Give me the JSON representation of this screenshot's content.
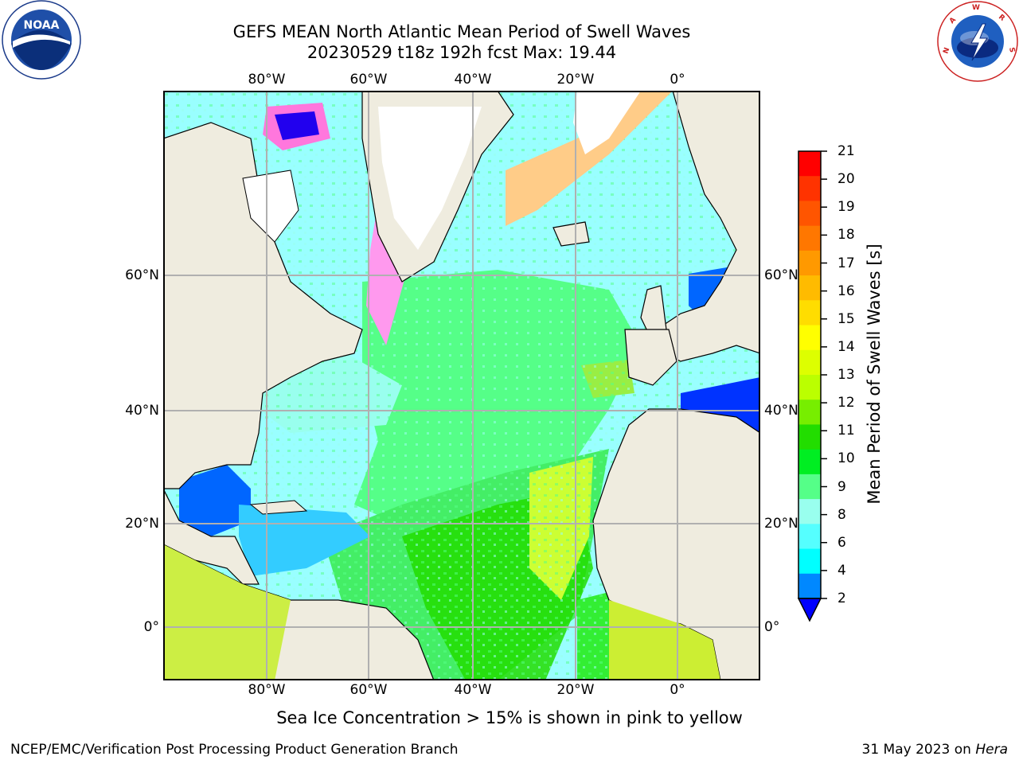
{
  "header": {
    "title_line1": "GEFS MEAN North Atlantic Mean Period of Swell Waves",
    "title_line2": "20230529 t18z 192h fcst   Max: 19.44"
  },
  "logos": {
    "noaa": {
      "name": "noaa-logo",
      "text": "NOAA",
      "ring_text": "NATIONAL OCEANIC AND ATMOSPHERIC ADMINISTRATION · U.S. DEPARTMENT OF COMMERCE"
    },
    "nws": {
      "name": "nws-logo",
      "ring_text": "NATIONAL WEATHER SERVICE"
    }
  },
  "map": {
    "region": "North Atlantic",
    "lon_ticks": [
      "80°W",
      "60°W",
      "40°W",
      "20°W",
      "0°"
    ],
    "lat_ticks": [
      "60°N",
      "40°N",
      "20°N",
      "0°"
    ],
    "colors": {
      "land": "#efecdf",
      "ice_free_white": "#ffffff",
      "grid": "#b0b0b0"
    }
  },
  "colorbar": {
    "label": "Mean Period of Swell Waves [s]",
    "ticks": [
      "21",
      "20",
      "19",
      "18",
      "17",
      "16",
      "15",
      "14",
      "13",
      "12",
      "11",
      "10",
      "9",
      "8",
      "6",
      "4",
      "2"
    ],
    "bin_colors": [
      "#ff0000",
      "#ff3300",
      "#ff5500",
      "#ff7700",
      "#ff9900",
      "#ffbb00",
      "#ffdd00",
      "#ffff00",
      "#ddff00",
      "#bbff00",
      "#77ee00",
      "#22dd00",
      "#00ee22",
      "#55ff88",
      "#99ffee",
      "#55ffff",
      "#00ffff",
      "#0088ff"
    ],
    "under_color": "#0000ff"
  },
  "notes": {
    "ice": "Sea Ice Concentration > 15% is shown in pink to yellow"
  },
  "footer": {
    "left": "NCEP/EMC/Verification Post Processing Product Generation Branch",
    "right_date": "31 May 2023 on",
    "right_machine": "Hera"
  }
}
